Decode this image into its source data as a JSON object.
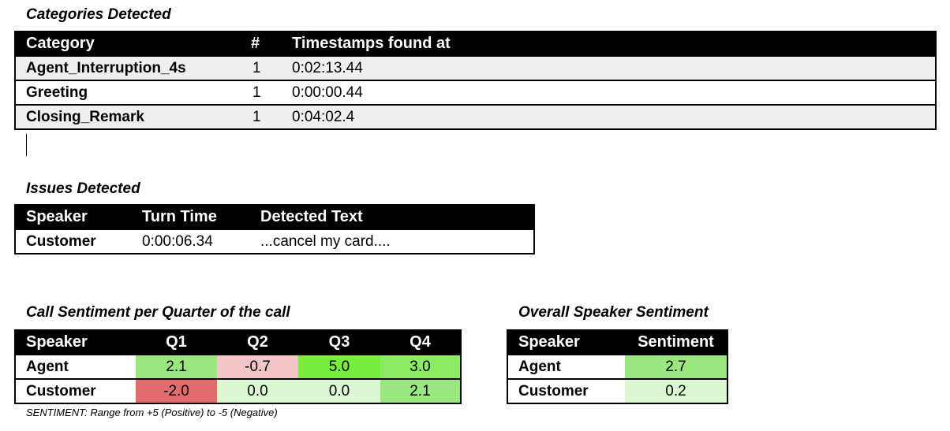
{
  "categories": {
    "title": "Categories Detected",
    "headers": [
      "Category",
      "#",
      "Timestamps found at"
    ],
    "rows": [
      {
        "category": "Agent_Interruption_4s",
        "count": "1",
        "timestamps": "0:02:13.44"
      },
      {
        "category": "Greeting",
        "count": "1",
        "timestamps": "0:00:00.44"
      },
      {
        "category": "Closing_Remark",
        "count": "1",
        "timestamps": "0:04:02.4"
      }
    ]
  },
  "issues": {
    "title": "Issues Detected",
    "headers": [
      "Speaker",
      "Turn Time",
      "Detected Text"
    ],
    "rows": [
      {
        "speaker": "Customer",
        "turn_time": "0:00:06.34",
        "text": "...cancel my card...."
      }
    ]
  },
  "quarter_sentiment": {
    "title": "Call Sentiment per Quarter of the call",
    "headers": [
      "Speaker",
      "Q1",
      "Q2",
      "Q3",
      "Q4"
    ],
    "rows": [
      {
        "speaker": "Agent",
        "values": [
          "2.1",
          "-0.7",
          "5.0",
          "3.0"
        ],
        "colors": [
          "#9be77f",
          "#f2c6c6",
          "#77ee3c",
          "#8dea63"
        ]
      },
      {
        "speaker": "Customer",
        "values": [
          "-2.0",
          "0.0",
          "0.0",
          "2.1"
        ],
        "colors": [
          "#e26b6b",
          "#dcf8d3",
          "#dcf8d3",
          "#9be77f"
        ]
      }
    ]
  },
  "overall_sentiment": {
    "title": "Overall Speaker Sentiment",
    "headers": [
      "Speaker",
      "Sentiment"
    ],
    "rows": [
      {
        "speaker": "Agent",
        "value": "2.7",
        "color": "#9be77f"
      },
      {
        "speaker": "Customer",
        "value": "0.2",
        "color": "#dcf8d3"
      }
    ]
  },
  "note": "SENTIMENT: Range from +5 (Positive) to -5 (Negative)"
}
